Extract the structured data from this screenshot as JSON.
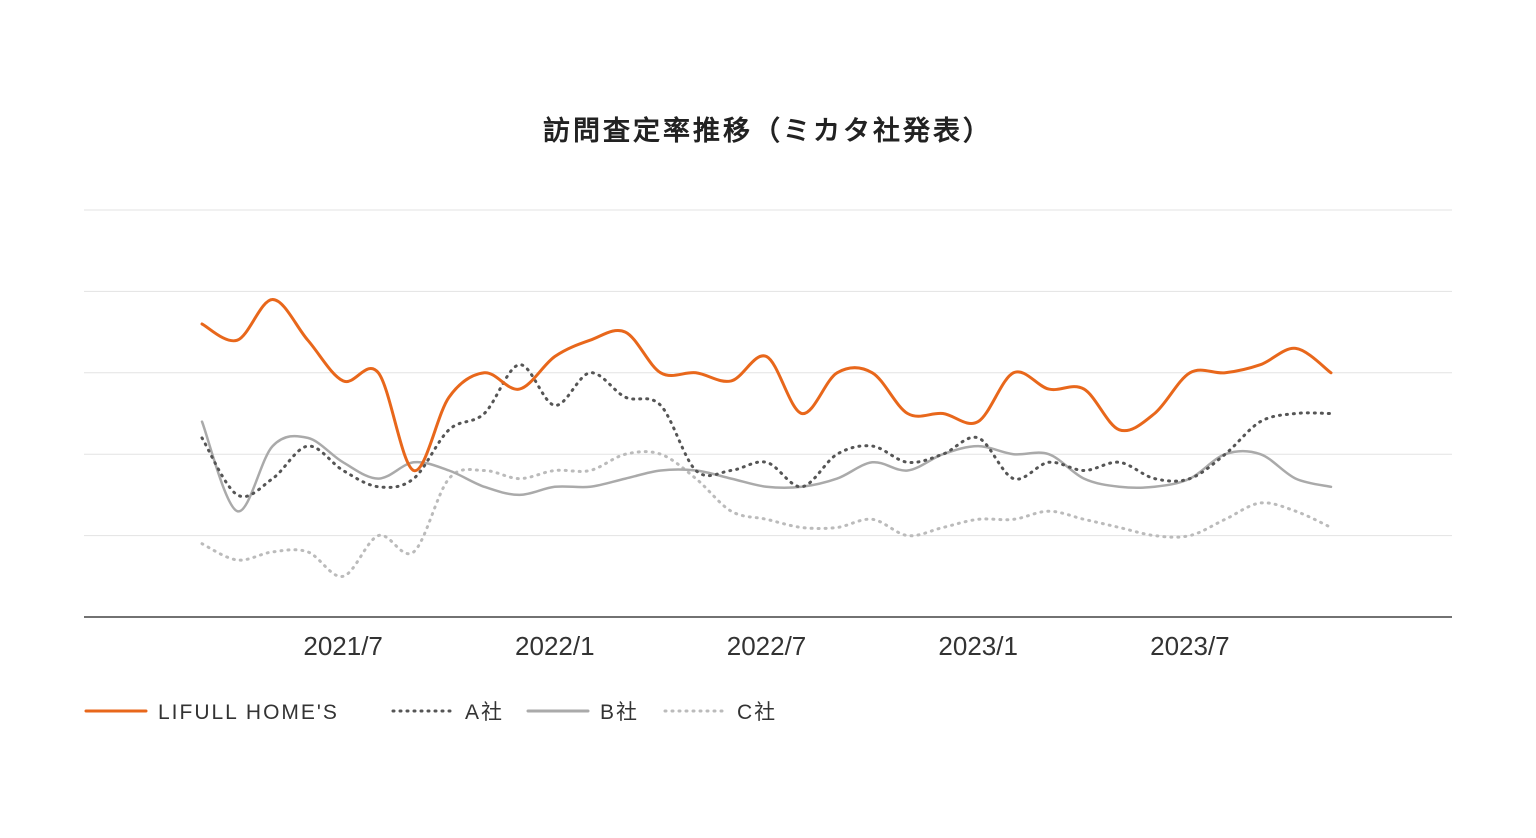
{
  "chart_data": {
    "type": "line",
    "title": "訪問査定率推移（ミカタ社発表）",
    "xlabel": "",
    "ylabel": "",
    "x_ticks": [
      "2021/7",
      "2022/1",
      "2022/7",
      "2023/1",
      "2023/7"
    ],
    "x_range": [
      0,
      32
    ],
    "x_tick_positions": [
      4,
      10,
      16,
      22,
      28
    ],
    "ylim": [
      0,
      5
    ],
    "y_gridlines": [
      1,
      2,
      3,
      4,
      5
    ],
    "y_tick_labels_shown": false,
    "legend": "bottom-left",
    "x": [
      0,
      1,
      2,
      3,
      4,
      5,
      6,
      7,
      8,
      9,
      10,
      11,
      12,
      13,
      14,
      15,
      16,
      17,
      18,
      19,
      20,
      21,
      22,
      23,
      24,
      25,
      26,
      27,
      28,
      29,
      30,
      31,
      32
    ],
    "series": [
      {
        "name": "LIFULL HOME'S",
        "color": "#e8671b",
        "style": "solid",
        "values": [
          3.6,
          3.4,
          3.9,
          3.4,
          2.9,
          3.0,
          1.8,
          2.7,
          3.0,
          2.8,
          3.2,
          3.4,
          3.5,
          3.0,
          3.0,
          2.9,
          3.2,
          2.5,
          3.0,
          3.0,
          2.5,
          2.5,
          2.4,
          3.0,
          2.8,
          2.8,
          2.3,
          2.5,
          3.0,
          3.0,
          3.1,
          3.3,
          3.0
        ]
      },
      {
        "name": "A社",
        "color": "#555555",
        "style": "dotted",
        "values": [
          2.2,
          1.5,
          1.7,
          2.1,
          1.8,
          1.6,
          1.7,
          2.3,
          2.5,
          3.1,
          2.6,
          3.0,
          2.7,
          2.6,
          1.8,
          1.8,
          1.9,
          1.6,
          2.0,
          2.1,
          1.9,
          2.0,
          2.2,
          1.7,
          1.9,
          1.8,
          1.9,
          1.7,
          1.7,
          2.0,
          2.4,
          2.5,
          2.5
        ]
      },
      {
        "name": "B社",
        "color": "#aaaaaa",
        "style": "solid",
        "values": [
          2.4,
          1.3,
          2.1,
          2.2,
          1.9,
          1.7,
          1.9,
          1.8,
          1.6,
          1.5,
          1.6,
          1.6,
          1.7,
          1.8,
          1.8,
          1.7,
          1.6,
          1.6,
          1.7,
          1.9,
          1.8,
          2.0,
          2.1,
          2.0,
          2.0,
          1.7,
          1.6,
          1.6,
          1.7,
          2.0,
          2.0,
          1.7,
          1.6
        ]
      },
      {
        "name": "C社",
        "color": "#bbbbbb",
        "style": "dotted",
        "values": [
          0.9,
          0.7,
          0.8,
          0.8,
          0.5,
          1.0,
          0.8,
          1.7,
          1.8,
          1.7,
          1.8,
          1.8,
          2.0,
          2.0,
          1.7,
          1.3,
          1.2,
          1.1,
          1.1,
          1.2,
          1.0,
          1.1,
          1.2,
          1.2,
          1.3,
          1.2,
          1.1,
          1.0,
          1.0,
          1.2,
          1.4,
          1.3,
          1.1
        ]
      }
    ]
  }
}
